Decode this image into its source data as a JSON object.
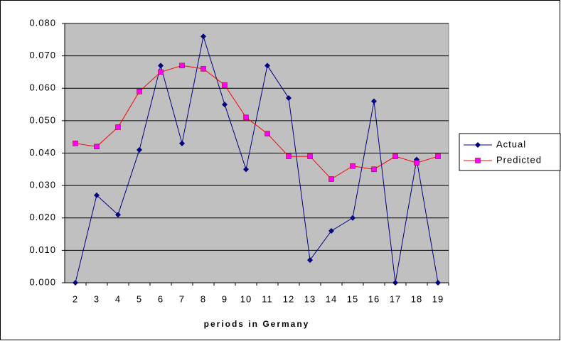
{
  "chart_data": {
    "type": "line",
    "x_label": "periods in Germany",
    "categories": [
      "2",
      "3",
      "4",
      "5",
      "6",
      "7",
      "8",
      "9",
      "10",
      "11",
      "12",
      "13",
      "14",
      "15",
      "16",
      "17",
      "18",
      "19"
    ],
    "series": [
      {
        "name": "Actual",
        "color": "#000080",
        "marker": "diamond",
        "marker_color": "#000080",
        "values": [
          0,
          0.027,
          0.021,
          0.041,
          0.067,
          0.043,
          0.076,
          0.055,
          0.035,
          0.067,
          0.057,
          0.007,
          0.016,
          0.02,
          0.056,
          0,
          0.038,
          0
        ]
      },
      {
        "name": "Predicted",
        "color": "#ff0000",
        "marker": "square",
        "marker_color": "#ff00ff",
        "values": [
          0.043,
          0.042,
          0.048,
          0.059,
          0.065,
          0.067,
          0.066,
          0.061,
          0.051,
          0.046,
          0.039,
          0.039,
          0.032,
          0.036,
          0.035,
          0.039,
          0.037,
          0.039
        ]
      }
    ],
    "ylim": [
      0,
      0.08
    ],
    "yticks": [
      {
        "value": 0,
        "label": "0.000"
      },
      {
        "value": 0.01,
        "label": "0.010"
      },
      {
        "value": 0.02,
        "label": "0.020"
      },
      {
        "value": 0.03,
        "label": "0.030"
      },
      {
        "value": 0.04,
        "label": "0.040"
      },
      {
        "value": 0.05,
        "label": "0.050"
      },
      {
        "value": 0.06,
        "label": "0.060"
      },
      {
        "value": 0.07,
        "label": "0.070"
      },
      {
        "value": 0.08,
        "label": "0.080"
      }
    ],
    "grid": true,
    "plot_background": "#c0c0c0",
    "legend": "right"
  }
}
